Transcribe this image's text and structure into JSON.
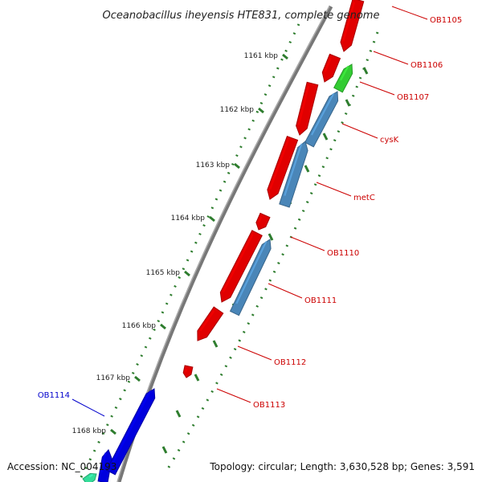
{
  "title": "Oceanobacillus iheyensis HTE831, complete genome",
  "accession_text": "Accession: NC_004193",
  "topology_text": "Topology: circular; Length: 3,630,528 bp; Genes: 3,591",
  "ticks": [
    "1161 kbp",
    "1162 kbp",
    "1163 kbp",
    "1164 kbp",
    "1165 kbp",
    "1166 kbp",
    "1167 kbp",
    "1168 kbp"
  ],
  "genes": [
    {
      "name": "OB1105",
      "strand": "forward",
      "color": "#e00000"
    },
    {
      "name": "OB1106",
      "strand": "forward",
      "color": "#e00000"
    },
    {
      "name": "OB1107",
      "strand": "reverse",
      "color": "#33cc33"
    },
    {
      "name": "cysK",
      "strand": "reverse",
      "color": "#4a86b8"
    },
    {
      "name": "metC",
      "strand": "reverse",
      "color": "#4a86b8"
    },
    {
      "name": "OB1110",
      "strand": "forward",
      "color": "#e00000"
    },
    {
      "name": "OB1111",
      "strand": "reverse",
      "color": "#4a86b8"
    },
    {
      "name": "OB1112",
      "strand": "forward",
      "color": "#e00000"
    },
    {
      "name": "OB1113",
      "strand": "forward",
      "color": "#e00000"
    },
    {
      "name": "OB1114",
      "strand": "forward",
      "color": "#0000dd"
    }
  ],
  "colors": {
    "forward_cds": "#e00000",
    "reverse_cds": "#4a86b8",
    "label_forward": "#cc0000",
    "label_blue": "#0000cc",
    "tick_mark": "#2e7d2e",
    "backbone": "#777777"
  }
}
